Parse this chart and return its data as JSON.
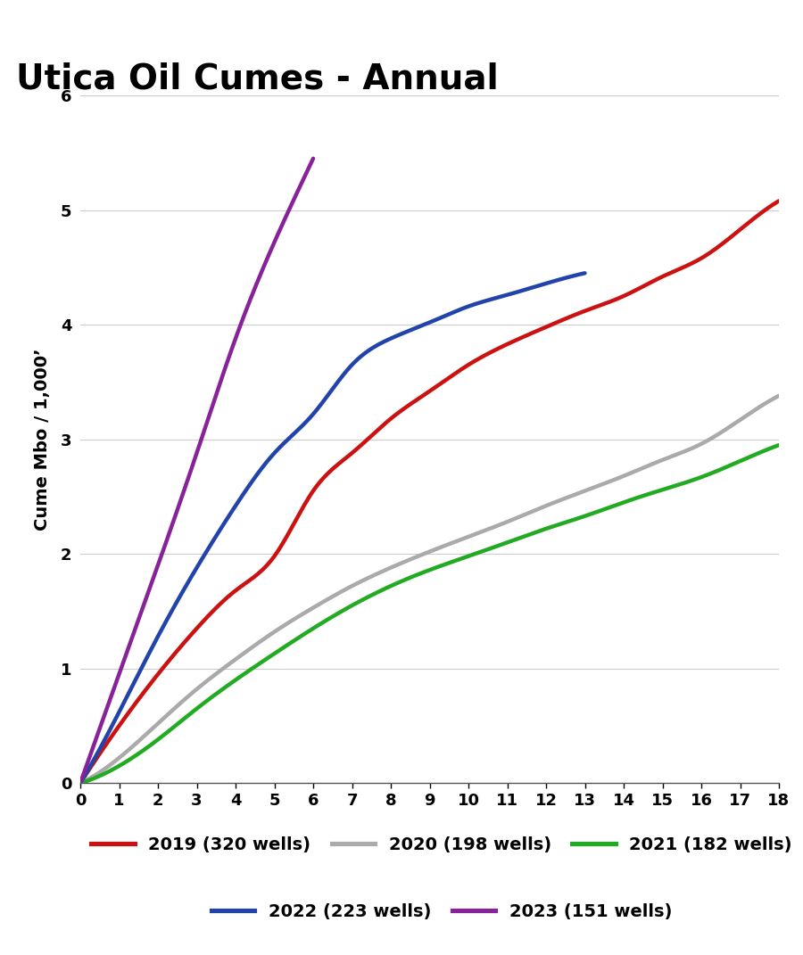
{
  "title": "Utica Oil Cumes - Annual",
  "ylabel": "Cume Mbo / 1,000’",
  "xlim": [
    0,
    18
  ],
  "ylim": [
    0,
    6
  ],
  "xticks": [
    0,
    1,
    2,
    3,
    4,
    5,
    6,
    7,
    8,
    9,
    10,
    11,
    12,
    13,
    14,
    15,
    16,
    17,
    18
  ],
  "yticks": [
    0,
    1,
    2,
    3,
    4,
    5,
    6
  ],
  "series": [
    {
      "label": "2019 (320 wells)",
      "color": "#cc1111",
      "x": [
        0,
        1,
        2,
        3,
        4,
        5,
        6,
        7,
        8,
        9,
        10,
        11,
        12,
        13,
        14,
        15,
        16,
        17,
        18
      ],
      "y": [
        0.0,
        0.5,
        0.95,
        1.35,
        1.68,
        1.98,
        2.55,
        2.88,
        3.18,
        3.42,
        3.65,
        3.83,
        3.98,
        4.12,
        4.25,
        4.42,
        4.58,
        4.83,
        5.08
      ]
    },
    {
      "label": "2020 (198 wells)",
      "color": "#aaaaaa",
      "x": [
        0,
        1,
        2,
        3,
        4,
        5,
        6,
        7,
        8,
        9,
        10,
        11,
        12,
        13,
        14,
        15,
        16,
        17,
        18
      ],
      "y": [
        0.0,
        0.22,
        0.52,
        0.82,
        1.08,
        1.32,
        1.53,
        1.72,
        1.88,
        2.02,
        2.15,
        2.28,
        2.42,
        2.55,
        2.68,
        2.82,
        2.96,
        3.17,
        3.38
      ]
    },
    {
      "label": "2021 (182 wells)",
      "color": "#22aa22",
      "x": [
        0,
        1,
        2,
        3,
        4,
        5,
        6,
        7,
        8,
        9,
        10,
        11,
        12,
        13,
        14,
        15,
        16,
        17,
        18
      ],
      "y": [
        0.0,
        0.15,
        0.38,
        0.65,
        0.9,
        1.13,
        1.35,
        1.55,
        1.72,
        1.86,
        1.98,
        2.1,
        2.22,
        2.33,
        2.45,
        2.56,
        2.67,
        2.81,
        2.95
      ]
    },
    {
      "label": "2022 (223 wells)",
      "color": "#2244aa",
      "x": [
        0,
        1,
        2,
        3,
        4,
        5,
        6,
        7,
        8,
        9,
        10,
        11,
        12,
        13
      ],
      "y": [
        0.0,
        0.62,
        1.28,
        1.88,
        2.42,
        2.88,
        3.22,
        3.65,
        3.88,
        4.02,
        4.16,
        4.26,
        4.36,
        4.45
      ]
    },
    {
      "label": "2023 (151 wells)",
      "color": "#882299",
      "x": [
        0,
        1,
        2,
        3,
        4,
        5,
        6
      ],
      "y": [
        0.0,
        0.95,
        1.9,
        2.88,
        3.88,
        4.72,
        5.45
      ]
    }
  ],
  "linewidth": 3.2,
  "background_color": "#ffffff",
  "grid_color": "#cccccc",
  "title_fontsize": 28,
  "label_fontsize": 14,
  "tick_fontsize": 13,
  "legend_fontsize": 14
}
